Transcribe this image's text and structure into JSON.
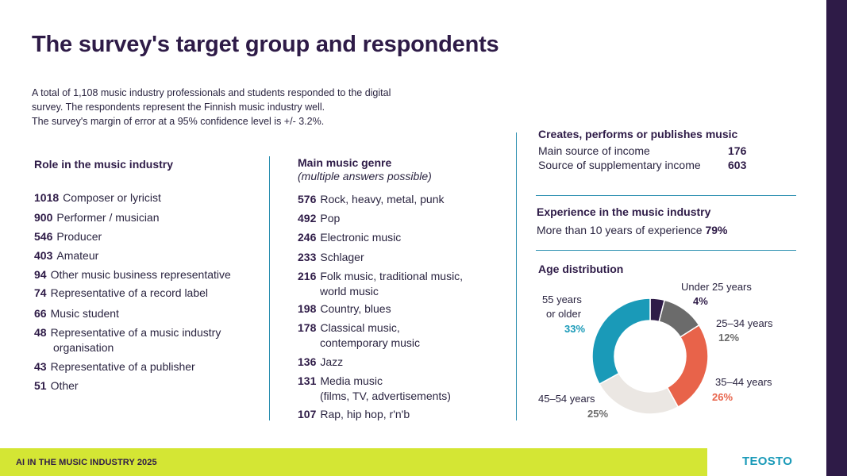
{
  "title": "The survey's target group and respondents",
  "intro": {
    "line1": "A total of 1,108 music industry professionals and students responded to the digital",
    "line2": "survey. The respondents represent the Finnish music industry well.",
    "line3": "The survey's margin of error at a 95% confidence level is +/- 3.2%."
  },
  "roles": {
    "heading": "Role in the music industry",
    "items": [
      {
        "num": "1018",
        "label": "Composer or lyricist"
      },
      {
        "num": "900",
        "label": "Performer / musician"
      },
      {
        "num": "546",
        "label": "Producer"
      },
      {
        "num": "403",
        "label": "Amateur"
      },
      {
        "num": "94",
        "label": "Other music business representative"
      },
      {
        "num": "74",
        "label": "Representative of a record label"
      },
      {
        "num": "66",
        "label": "Music student"
      },
      {
        "num": "48",
        "label": "Representative of a music industry",
        "cont": "organisation"
      },
      {
        "num": "43",
        "label": "Representative of a publisher"
      },
      {
        "num": "51",
        "label": "Other"
      }
    ]
  },
  "genres": {
    "heading": "Main music genre",
    "subheading": "(multiple answers possible)",
    "items": [
      {
        "num": "576",
        "label": "Rock, heavy, metal, punk"
      },
      {
        "num": "492",
        "label": "Pop"
      },
      {
        "num": "246",
        "label": "Electronic music"
      },
      {
        "num": "233",
        "label": "Schlager"
      },
      {
        "num": "216",
        "label": "Folk music, traditional music,",
        "cont": "world music"
      },
      {
        "num": "198",
        "label": "Country, blues"
      },
      {
        "num": "178",
        "label": "Classical music,",
        "cont": "contemporary music"
      },
      {
        "num": "136",
        "label": "Jazz"
      },
      {
        "num": "131",
        "label": "Media music",
        "cont": "(films, TV, advertisements)"
      },
      {
        "num": "107",
        "label": "Rap, hip hop, r'n'b"
      }
    ]
  },
  "creates": {
    "heading": "Creates, performs or publishes music",
    "rows": [
      {
        "label": "Main source of income",
        "value": "176"
      },
      {
        "label": "Source of supplementary income",
        "value": "603"
      }
    ]
  },
  "experience": {
    "heading": "Experience in the music industry",
    "text": "More than 10 years of experience",
    "value": "79%"
  },
  "age": {
    "heading": "Age distribution",
    "labels": {
      "under25": "Under 25 years",
      "a25_34": "25–34 years",
      "a35_44": "35–44 years",
      "a45_54": "45–54 years",
      "a55_line1": "55 years",
      "a55_line2": "or older"
    },
    "values": {
      "under25": "4%",
      "a25_34": "12%",
      "a35_44": "26%",
      "a45_54": "25%",
      "a55": "33%"
    }
  },
  "chart_data": {
    "type": "pie",
    "title": "Age distribution",
    "categories": [
      "Under 25 years",
      "25–34 years",
      "35–44 years",
      "45–54 years",
      "55 years or older"
    ],
    "values": [
      4,
      12,
      26,
      25,
      33
    ],
    "colors": [
      "#2e1b47",
      "#6b6b6b",
      "#e8634a",
      "#ebe7e3",
      "#1a9ab8"
    ]
  },
  "footer": {
    "text": "AI IN THE MUSIC INDUSTRY 2025",
    "logo": "TEOSTO"
  }
}
